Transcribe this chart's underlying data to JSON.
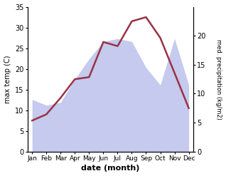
{
  "months": [
    "Jan",
    "Feb",
    "Mar",
    "Apr",
    "May",
    "Jun",
    "Jul",
    "Aug",
    "Sep",
    "Oct",
    "Nov",
    "Dec"
  ],
  "temperature": [
    7.5,
    9.0,
    13.0,
    17.5,
    18.0,
    26.5,
    25.5,
    31.5,
    32.5,
    27.5,
    19.0,
    10.5
  ],
  "precipitation": [
    9.0,
    8.0,
    8.5,
    12.5,
    16.0,
    19.0,
    19.5,
    19.0,
    14.5,
    11.5,
    19.5,
    11.5
  ],
  "temp_color": "#993344",
  "precip_fill_color": "#c5caee",
  "temp_ylim": [
    0,
    35
  ],
  "precip_ylim": [
    0,
    25
  ],
  "temp_yticks": [
    0,
    5,
    10,
    15,
    20,
    25,
    30,
    35
  ],
  "precip_yticks": [
    0,
    5,
    10,
    15,
    20
  ],
  "ylabel_left": "max temp (C)",
  "ylabel_right": "med. precipitation (kg/m2)",
  "xlabel": "date (month)",
  "background_color": "#ffffff"
}
